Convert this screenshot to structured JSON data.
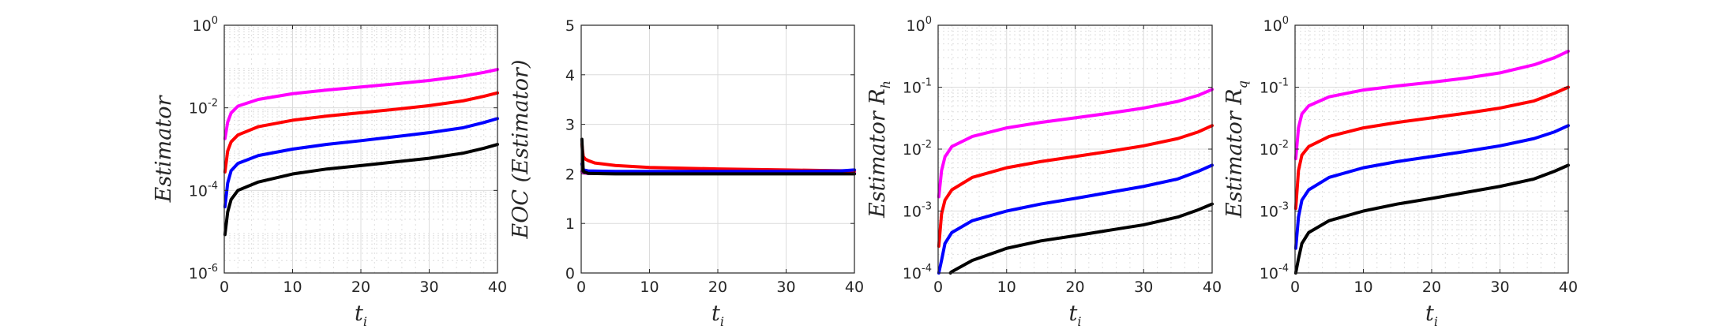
{
  "chart_data": [
    {
      "type": "line",
      "ylabel": "Estimator",
      "xlabel": "t",
      "xlabel_sub": "i",
      "yscale": "log",
      "xlim": [
        0,
        40
      ],
      "ylim": [
        1e-06,
        1
      ],
      "minor_grid": true,
      "xticks": [
        "0",
        "10",
        "20",
        "30",
        "40"
      ],
      "yticks": [
        {
          "base": "10",
          "exp": "-6",
          "value": 1e-06
        },
        {
          "base": "10",
          "exp": "-4",
          "value": 0.0001
        },
        {
          "base": "10",
          "exp": "-2",
          "value": 0.01
        },
        {
          "base": "10",
          "exp": "0",
          "value": 1
        }
      ],
      "series": [
        {
          "color": "#ff00ff",
          "x": [
            0.1,
            0.5,
            1,
            2,
            5,
            10,
            15,
            20,
            25,
            30,
            35,
            38,
            40
          ],
          "y": [
            0.0018,
            0.0045,
            0.0075,
            0.011,
            0.016,
            0.022,
            0.027,
            0.032,
            0.038,
            0.046,
            0.059,
            0.072,
            0.085
          ]
        },
        {
          "color": "#ff0000",
          "x": [
            0.1,
            0.5,
            1,
            2,
            5,
            10,
            15,
            20,
            25,
            30,
            35,
            38,
            40
          ],
          "y": [
            0.00028,
            0.0009,
            0.0015,
            0.0022,
            0.0035,
            0.005,
            0.0063,
            0.0076,
            0.0092,
            0.0113,
            0.0148,
            0.019,
            0.023
          ]
        },
        {
          "color": "#0000ff",
          "x": [
            0.1,
            0.5,
            1,
            2,
            5,
            10,
            15,
            20,
            25,
            30,
            35,
            38,
            40
          ],
          "y": [
            4e-05,
            0.00015,
            0.0003,
            0.00045,
            0.0007,
            0.001,
            0.0013,
            0.0016,
            0.002,
            0.0025,
            0.0033,
            0.0044,
            0.0055
          ]
        },
        {
          "color": "#000000",
          "x": [
            0.1,
            0.5,
            1,
            2,
            5,
            10,
            15,
            20,
            25,
            30,
            35,
            38,
            40
          ],
          "y": [
            8.5e-06,
            3e-05,
            6e-05,
            0.0001,
            0.00016,
            0.00025,
            0.00033,
            0.0004,
            0.00049,
            0.0006,
            0.0008,
            0.00105,
            0.0013
          ]
        }
      ]
    },
    {
      "type": "line",
      "ylabel": "EOC (Estimator)",
      "xlabel": "t",
      "xlabel_sub": "i",
      "yscale": "linear",
      "xlim": [
        0,
        40
      ],
      "ylim": [
        0,
        5
      ],
      "minor_grid": false,
      "xticks": [
        "0",
        "10",
        "20",
        "30",
        "40"
      ],
      "yticks": [
        {
          "base": "0",
          "value": 0
        },
        {
          "base": "1",
          "value": 1
        },
        {
          "base": "2",
          "value": 2
        },
        {
          "base": "3",
          "value": 3
        },
        {
          "base": "4",
          "value": 4
        },
        {
          "base": "5",
          "value": 5
        }
      ],
      "series": [
        {
          "color": "#ff00ff",
          "x": [
            0.1,
            0.3,
            1,
            5,
            10,
            20,
            30,
            40
          ],
          "y": [
            2.05,
            2.02,
            2.01,
            2.01,
            2.01,
            2.01,
            2.01,
            2.02
          ]
        },
        {
          "color": "#ff0000",
          "x": [
            0.1,
            0.3,
            0.6,
            1,
            2,
            5,
            10,
            20,
            30,
            35,
            40
          ],
          "y": [
            2.6,
            2.35,
            2.3,
            2.27,
            2.22,
            2.17,
            2.13,
            2.1,
            2.08,
            2.07,
            2.06
          ]
        },
        {
          "color": "#0000ff",
          "x": [
            0.1,
            0.3,
            1,
            5,
            10,
            20,
            30,
            38,
            40
          ],
          "y": [
            2.2,
            2.08,
            2.06,
            2.05,
            2.05,
            2.05,
            2.05,
            2.06,
            2.08
          ]
        },
        {
          "color": "#000000",
          "x": [
            0.1,
            0.3,
            1,
            5,
            10,
            20,
            30,
            40
          ],
          "y": [
            2.7,
            2.05,
            2.01,
            2.0,
            2.0,
            2.0,
            2.0,
            2.0
          ]
        }
      ]
    },
    {
      "type": "line",
      "ylabel": "Estimator R",
      "ylabel_sub": "h",
      "xlabel": "t",
      "xlabel_sub": "i",
      "yscale": "log",
      "xlim": [
        0,
        40
      ],
      "ylim": [
        0.0001,
        1
      ],
      "minor_grid": true,
      "xticks": [
        "0",
        "10",
        "20",
        "30",
        "40"
      ],
      "yticks": [
        {
          "base": "10",
          "exp": "-4",
          "value": 0.0001
        },
        {
          "base": "10",
          "exp": "-3",
          "value": 0.001
        },
        {
          "base": "10",
          "exp": "-2",
          "value": 0.01
        },
        {
          "base": "10",
          "exp": "-1",
          "value": 0.1
        },
        {
          "base": "10",
          "exp": "0",
          "value": 1
        }
      ],
      "series": [
        {
          "color": "#ff00ff",
          "x": [
            0.1,
            0.5,
            1,
            2,
            5,
            10,
            15,
            20,
            25,
            30,
            35,
            38,
            40
          ],
          "y": [
            0.0017,
            0.0045,
            0.0075,
            0.011,
            0.016,
            0.022,
            0.027,
            0.032,
            0.038,
            0.046,
            0.059,
            0.074,
            0.092
          ]
        },
        {
          "color": "#ff0000",
          "x": [
            0.1,
            0.5,
            1,
            2,
            5,
            10,
            15,
            20,
            25,
            30,
            35,
            38,
            40
          ],
          "y": [
            0.00027,
            0.0009,
            0.0015,
            0.0022,
            0.0035,
            0.005,
            0.0063,
            0.0076,
            0.0092,
            0.0113,
            0.0148,
            0.019,
            0.024
          ]
        },
        {
          "color": "#0000ff",
          "x": [
            0.1,
            0.5,
            1,
            2,
            5,
            10,
            15,
            20,
            25,
            30,
            35,
            38,
            40
          ],
          "y": [
            0.0001,
            0.00016,
            0.0003,
            0.00045,
            0.0007,
            0.001,
            0.0013,
            0.0016,
            0.002,
            0.0025,
            0.0033,
            0.0044,
            0.0055
          ]
        },
        {
          "color": "#000000",
          "x": [
            1.8,
            2,
            5,
            10,
            15,
            20,
            25,
            30,
            35,
            38,
            40
          ],
          "y": [
            0.0001,
            0.000105,
            0.00016,
            0.00025,
            0.00033,
            0.0004,
            0.00049,
            0.0006,
            0.0008,
            0.00105,
            0.0013
          ]
        }
      ]
    },
    {
      "type": "line",
      "ylabel": "Estimator R",
      "ylabel_sub": "q",
      "xlabel": "t",
      "xlabel_sub": "i",
      "yscale": "log",
      "xlim": [
        0,
        40
      ],
      "ylim": [
        0.0001,
        1
      ],
      "minor_grid": true,
      "xticks": [
        "0",
        "10",
        "20",
        "30",
        "40"
      ],
      "yticks": [
        {
          "base": "10",
          "exp": "-4",
          "value": 0.0001
        },
        {
          "base": "10",
          "exp": "-3",
          "value": 0.001
        },
        {
          "base": "10",
          "exp": "-2",
          "value": 0.01
        },
        {
          "base": "10",
          "exp": "-1",
          "value": 0.1
        },
        {
          "base": "10",
          "exp": "0",
          "value": 1
        }
      ],
      "series": [
        {
          "color": "#ff00ff",
          "x": [
            0.1,
            0.5,
            1,
            2,
            5,
            10,
            15,
            20,
            25,
            30,
            35,
            38,
            40
          ],
          "y": [
            0.007,
            0.022,
            0.037,
            0.05,
            0.07,
            0.09,
            0.105,
            0.12,
            0.14,
            0.17,
            0.23,
            0.3,
            0.38
          ]
        },
        {
          "color": "#ff0000",
          "x": [
            0.1,
            0.5,
            1,
            2,
            5,
            10,
            15,
            20,
            25,
            30,
            35,
            38,
            40
          ],
          "y": [
            0.0011,
            0.0045,
            0.008,
            0.011,
            0.016,
            0.022,
            0.027,
            0.032,
            0.038,
            0.046,
            0.06,
            0.08,
            0.1
          ]
        },
        {
          "color": "#0000ff",
          "x": [
            0.1,
            0.5,
            1,
            2,
            5,
            10,
            15,
            20,
            25,
            30,
            35,
            38,
            40
          ],
          "y": [
            0.00025,
            0.0008,
            0.0015,
            0.0022,
            0.0035,
            0.005,
            0.0063,
            0.0076,
            0.0092,
            0.0113,
            0.0148,
            0.019,
            0.024
          ]
        },
        {
          "color": "#000000",
          "x": [
            0.1,
            0.5,
            1,
            2,
            5,
            10,
            15,
            20,
            25,
            30,
            35,
            38,
            40
          ],
          "y": [
            0.0001,
            0.00017,
            0.0003,
            0.00045,
            0.0007,
            0.001,
            0.0013,
            0.0016,
            0.002,
            0.0025,
            0.0033,
            0.0044,
            0.0055
          ]
        }
      ]
    }
  ]
}
